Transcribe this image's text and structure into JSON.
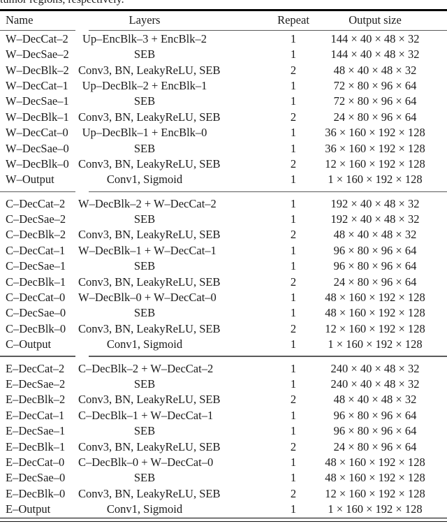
{
  "caption_fragment": "tumor regions, respectively.",
  "table": {
    "headers": {
      "name": "Name",
      "layers": "Layers",
      "repeat": "Repeat",
      "output_size": "Output size"
    },
    "groups": [
      {
        "rows": [
          {
            "name": "W–DecCat–2",
            "layers": "Up–EncBlk–3 + EncBlk–2",
            "repeat": "1",
            "output_size": "144 × 40 × 48 × 32"
          },
          {
            "name": "W–DecSae–2",
            "layers": "SEB",
            "repeat": "1",
            "output_size": "144 × 40 × 48 × 32"
          },
          {
            "name": "W–DecBlk–2",
            "layers": "Conv3, BN, LeakyReLU, SEB",
            "repeat": "2",
            "output_size": "48 × 40 × 48 × 32"
          },
          {
            "name": "W–DecCat–1",
            "layers": "Up–DecBlk–2 + EncBlk–1",
            "repeat": "1",
            "output_size": "72 × 80 × 96 × 64"
          },
          {
            "name": "W–DecSae–1",
            "layers": "SEB",
            "repeat": "1",
            "output_size": "72 × 80 × 96 × 64"
          },
          {
            "name": "W–DecBlk–1",
            "layers": "Conv3, BN, LeakyReLU, SEB",
            "repeat": "2",
            "output_size": "24 × 80 × 96 × 64"
          },
          {
            "name": "W–DecCat–0",
            "layers": "Up–DecBlk–1 + EncBlk–0",
            "repeat": "1",
            "output_size": "36 × 160 × 192 × 128"
          },
          {
            "name": "W–DecSae–0",
            "layers": "SEB",
            "repeat": "1",
            "output_size": "36 × 160 × 192 × 128"
          },
          {
            "name": "W–DecBlk–0",
            "layers": "Conv3, BN, LeakyReLU, SEB",
            "repeat": "2",
            "output_size": "12 × 160 × 192 × 128"
          },
          {
            "name": "W–Output",
            "layers": "Conv1, Sigmoid",
            "repeat": "1",
            "output_size": "1 × 160 × 192 × 128"
          }
        ]
      },
      {
        "rows": [
          {
            "name": "C–DecCat–2",
            "layers": "W–DecBlk–2 + W–DecCat–2",
            "repeat": "1",
            "output_size": "192 × 40 × 48 × 32"
          },
          {
            "name": "C–DecSae–2",
            "layers": "SEB",
            "repeat": "1",
            "output_size": "192 × 40 × 48 × 32"
          },
          {
            "name": "C–DecBlk–2",
            "layers": "Conv3, BN, LeakyReLU, SEB",
            "repeat": "2",
            "output_size": "48 × 40 × 48 × 32"
          },
          {
            "name": "C–DecCat–1",
            "layers": "W–DecBlk–1 + W–DecCat–1",
            "repeat": "1",
            "output_size": "96 × 80 × 96 × 64"
          },
          {
            "name": "C–DecSae–1",
            "layers": "SEB",
            "repeat": "1",
            "output_size": "96 × 80 × 96 × 64"
          },
          {
            "name": "C–DecBlk–1",
            "layers": "Conv3, BN, LeakyReLU, SEB",
            "repeat": "2",
            "output_size": "24 × 80 × 96 × 64"
          },
          {
            "name": "C–DecCat–0",
            "layers": "W–DecBlk–0 + W–DecCat–0",
            "repeat": "1",
            "output_size": "48 × 160 × 192 × 128"
          },
          {
            "name": "C–DecSae–0",
            "layers": "SEB",
            "repeat": "1",
            "output_size": "48 × 160 × 192 × 128"
          },
          {
            "name": "C–DecBlk–0",
            "layers": "Conv3, BN, LeakyReLU, SEB",
            "repeat": "2",
            "output_size": "12 × 160 × 192 × 128"
          },
          {
            "name": "C–Output",
            "layers": "Conv1, Sigmoid",
            "repeat": "1",
            "output_size": "1 × 160 × 192 × 128"
          }
        ]
      },
      {
        "rows": [
          {
            "name": "E–DecCat–2",
            "layers": "C–DecBlk–2 + W–DecCat–2",
            "repeat": "1",
            "output_size": "240 × 40 × 48 × 32"
          },
          {
            "name": "E–DecSae–2",
            "layers": "SEB",
            "repeat": "1",
            "output_size": "240 × 40 × 48 × 32"
          },
          {
            "name": "E–DecBlk–2",
            "layers": "Conv3, BN, LeakyReLU, SEB",
            "repeat": "2",
            "output_size": "48 × 40 × 48 × 32"
          },
          {
            "name": "E–DecCat–1",
            "layers": "C–DecBlk–1 + W–DecCat–1",
            "repeat": "1",
            "output_size": "96 × 80 × 96 × 64"
          },
          {
            "name": "E–DecSae–1",
            "layers": "SEB",
            "repeat": "1",
            "output_size": "96 × 80 × 96 × 64"
          },
          {
            "name": "E–DecBlk–1",
            "layers": "Conv3, BN, LeakyReLU, SEB",
            "repeat": "2",
            "output_size": "24 × 80 × 96 × 64"
          },
          {
            "name": "E–DecCat–0",
            "layers": "C–DecBlk–0 + W–DecCat–0",
            "repeat": "1",
            "output_size": "48 × 160 × 192 × 128"
          },
          {
            "name": "E–DecSae–0",
            "layers": "SEB",
            "repeat": "1",
            "output_size": "48 × 160 × 192 × 128"
          },
          {
            "name": "E–DecBlk–0",
            "layers": "Conv3, BN, LeakyReLU, SEB",
            "repeat": "2",
            "output_size": "12 × 160 × 192 × 128"
          },
          {
            "name": "E–Output",
            "layers": "Conv1, Sigmoid",
            "repeat": "1",
            "output_size": "1 × 160 × 192 × 128"
          }
        ]
      }
    ]
  }
}
